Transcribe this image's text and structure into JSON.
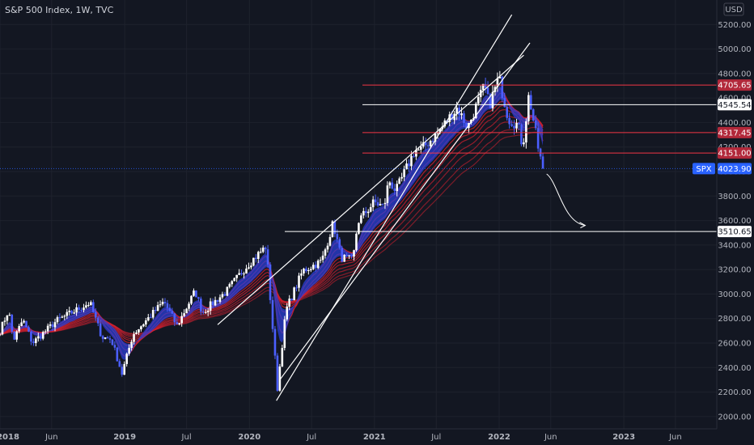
{
  "header": {
    "title": "S&P 500 Index, 1W, TVC",
    "currency": "USD"
  },
  "colors": {
    "background": "#131722",
    "red_level": "#f23645",
    "white_level": "#ffffff",
    "ribbon_red": "#d3202f",
    "ribbon_blue": "#2a3fd6",
    "last_price": "#2962ff"
  },
  "chart_data": {
    "type": "candlestick",
    "y_axis": {
      "min": 1900,
      "max": 5400,
      "unit": "USD",
      "ticks": [
        "2000.00",
        "2200.00",
        "2400.00",
        "2600.00",
        "2800.00",
        "3000.00",
        "3200.00",
        "3400.00",
        "3600.00",
        "3800.00",
        "4000.00",
        "4200.00",
        "4400.00",
        "4600.00",
        "4800.00",
        "5000.00",
        "5200.00"
      ]
    },
    "x_axis": {
      "start": "2018-01-01",
      "end": "2023-09-30",
      "ticks": [
        {
          "label": "2018",
          "date": "2018-01-01"
        },
        {
          "label": "Jun",
          "date": "2018-06-01"
        },
        {
          "label": "2019",
          "date": "2019-01-01"
        },
        {
          "label": "Jul",
          "date": "2019-07-01"
        },
        {
          "label": "2020",
          "date": "2020-01-01"
        },
        {
          "label": "Jul",
          "date": "2020-07-01"
        },
        {
          "label": "2021",
          "date": "2021-01-01"
        },
        {
          "label": "Jul",
          "date": "2021-07-01"
        },
        {
          "label": "2022",
          "date": "2022-01-01"
        },
        {
          "label": "Jun",
          "date": "2022-06-01"
        },
        {
          "label": "2023",
          "date": "2023-01-01"
        },
        {
          "label": "Jun",
          "date": "2023-06-01"
        }
      ]
    },
    "price_anchors": [
      [
        "2018-01-01",
        2700
      ],
      [
        "2018-01-26",
        2870
      ],
      [
        "2018-02-09",
        2620
      ],
      [
        "2018-03-09",
        2790
      ],
      [
        "2018-04-06",
        2600
      ],
      [
        "2018-06-15",
        2780
      ],
      [
        "2018-09-21",
        2930
      ],
      [
        "2018-10-26",
        2650
      ],
      [
        "2018-11-23",
        2630
      ],
      [
        "2018-12-24",
        2350
      ],
      [
        "2019-01-25",
        2670
      ],
      [
        "2019-04-26",
        2940
      ],
      [
        "2019-06-03",
        2740
      ],
      [
        "2019-07-26",
        3025
      ],
      [
        "2019-08-16",
        2850
      ],
      [
        "2019-10-25",
        3020
      ],
      [
        "2019-12-27",
        3240
      ],
      [
        "2020-02-19",
        3390
      ],
      [
        "2020-03-23",
        2230
      ],
      [
        "2020-04-17",
        2870
      ],
      [
        "2020-06-05",
        3190
      ],
      [
        "2020-07-31",
        3270
      ],
      [
        "2020-09-02",
        3580
      ],
      [
        "2020-09-25",
        3300
      ],
      [
        "2020-10-30",
        3270
      ],
      [
        "2020-11-13",
        3590
      ],
      [
        "2020-12-31",
        3750
      ],
      [
        "2021-01-29",
        3710
      ],
      [
        "2021-02-12",
        3930
      ],
      [
        "2021-03-05",
        3840
      ],
      [
        "2021-04-30",
        4180
      ],
      [
        "2021-05-14",
        4170
      ],
      [
        "2021-06-30",
        4300
      ],
      [
        "2021-08-31",
        4520
      ],
      [
        "2021-10-01",
        4360
      ],
      [
        "2021-11-19",
        4700
      ],
      [
        "2021-12-03",
        4540
      ],
      [
        "2021-12-31",
        4770
      ],
      [
        "2022-01-28",
        4430
      ],
      [
        "2022-02-25",
        4380
      ],
      [
        "2022-03-11",
        4200
      ],
      [
        "2022-03-29",
        4630
      ],
      [
        "2022-04-29",
        4130
      ],
      [
        "2022-05-13",
        4023.9
      ]
    ],
    "horizontal_levels": [
      {
        "value": 4705.65,
        "label": "4705.65",
        "style": "red"
      },
      {
        "value": 4545.54,
        "label": "4545.54",
        "style": "white"
      },
      {
        "value": 4317.45,
        "label": "4317.45",
        "style": "red"
      },
      {
        "value": 4151.0,
        "label": "4151.00",
        "style": "red"
      },
      {
        "value": 3510.65,
        "label": "3510.65",
        "style": "white"
      }
    ],
    "channel_lines": [
      {
        "from": [
          "2020-03-20",
          2130
        ],
        "to": [
          "2022-02-07",
          5280
        ]
      },
      {
        "from": [
          "2019-09-30",
          2750
        ],
        "to": [
          "2022-03-14",
          4950
        ]
      },
      {
        "from": [
          "2020-03-30",
          2300
        ],
        "to": [
          "2022-04-01",
          5050
        ]
      }
    ],
    "forecast_arrow": {
      "from": [
        "2022-05-20",
        3980
      ],
      "to": [
        "2022-09-10",
        3560
      ]
    },
    "last_price": {
      "symbol": "SPX",
      "value": 4023.9,
      "label": "4023.90"
    }
  }
}
